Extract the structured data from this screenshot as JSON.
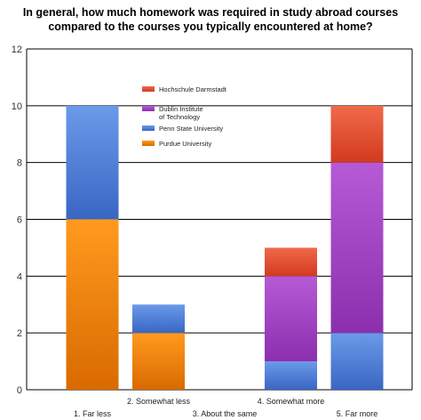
{
  "title_lines": [
    "In general, how much homework was required in study abroad courses",
    "compared to the courses you typically encountered at home?"
  ],
  "colors": {
    "Purdue University": [
      "#ff9a1e",
      "#d96a00"
    ],
    "Penn State University": [
      "#6a9ae8",
      "#3a66c4"
    ],
    "Dublin Institute of Technology": [
      "#b65ad6",
      "#8c2fae"
    ],
    "Hochschule Darmstadt": [
      "#f06a4a",
      "#d23a20"
    ]
  },
  "chart_data": {
    "type": "bar",
    "stacked": true,
    "title": "In general, how much homework was required in study abroad courses compared to the courses you typically encountered at home?",
    "categories": [
      "1. Far less",
      "2. Somewhat less",
      "3. About the same",
      "4. Somewhat more",
      "5. Far more"
    ],
    "series": [
      {
        "name": "Purdue University",
        "values": [
          6,
          2,
          0,
          0,
          0
        ]
      },
      {
        "name": "Penn State University",
        "values": [
          4,
          1,
          0,
          1,
          2
        ]
      },
      {
        "name": "Dublin Institute of Technology",
        "values": [
          0,
          0,
          0,
          3,
          6
        ]
      },
      {
        "name": "Hochschule Darmstadt",
        "values": [
          0,
          0,
          0,
          1,
          2
        ]
      }
    ],
    "legend": [
      {
        "name": "Hochschule Darmstadt",
        "lines": [
          "Hochschule Darmstadt"
        ]
      },
      {
        "name": "Dublin Institute of Technology",
        "lines": [
          "Dublin Institute",
          "of Technology"
        ]
      },
      {
        "name": "Penn State University",
        "lines": [
          "Penn State University"
        ]
      },
      {
        "name": "Purdue University",
        "lines": [
          "Purdue University"
        ]
      }
    ],
    "legend_position": "top-center",
    "ylim": [
      0,
      12
    ],
    "yticks": [
      0,
      2,
      4,
      6,
      8,
      10,
      12
    ],
    "grid": true
  }
}
